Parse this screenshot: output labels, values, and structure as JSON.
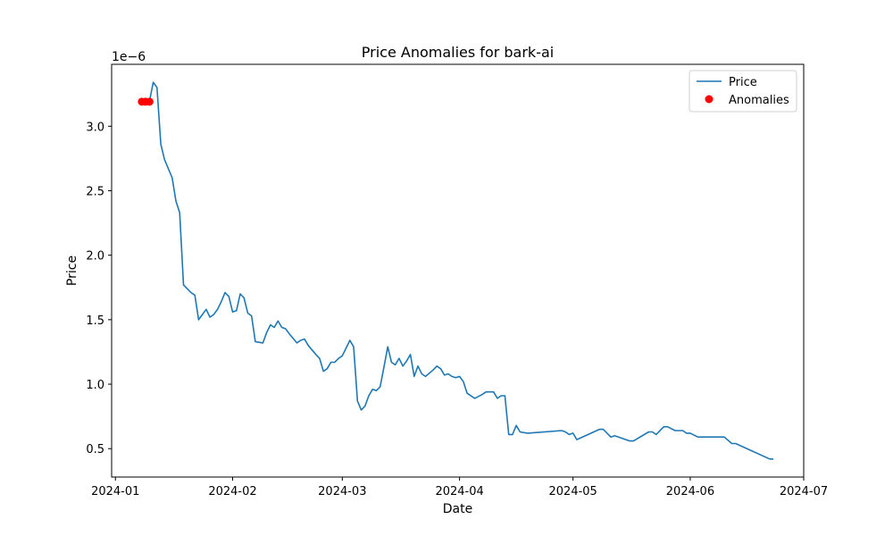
{
  "chart_data": {
    "type": "line",
    "title": "Price Anomalies for bark-ai",
    "xlabel": "Date",
    "ylabel": "Price",
    "y_scale_label": "1e−6",
    "x_range": [
      "2023-12-31",
      "2024-07-01"
    ],
    "ylim": [
      0.28,
      3.48
    ],
    "x_ticks": [
      "2024-01",
      "2024-02",
      "2024-03",
      "2024-04",
      "2024-05",
      "2024-06",
      "2024-07"
    ],
    "x_tick_dates": [
      "2024-01-01",
      "2024-02-01",
      "2024-03-01",
      "2024-04-01",
      "2024-05-01",
      "2024-06-01",
      "2024-07-01"
    ],
    "y_ticks": [
      0.5,
      1.0,
      1.5,
      2.0,
      2.5,
      3.0
    ],
    "y_tick_labels": [
      "0.5",
      "1.0",
      "1.5",
      "2.0",
      "2.5",
      "3.0"
    ],
    "legend_position": "top-right",
    "grid": false,
    "series": [
      {
        "name": "Price",
        "kind": "line",
        "color": "#1f77b4",
        "points": [
          [
            "2024-01-08",
            3.19
          ],
          [
            "2024-01-09",
            3.19
          ],
          [
            "2024-01-10",
            3.19
          ],
          [
            "2024-01-11",
            3.34
          ],
          [
            "2024-01-12",
            3.3
          ],
          [
            "2024-01-13",
            2.86
          ],
          [
            "2024-01-14",
            2.74
          ],
          [
            "2024-01-16",
            2.6
          ],
          [
            "2024-01-17",
            2.42
          ],
          [
            "2024-01-18",
            2.33
          ],
          [
            "2024-01-19",
            1.77
          ],
          [
            "2024-01-20",
            1.74
          ],
          [
            "2024-01-21",
            1.71
          ],
          [
            "2024-01-22",
            1.69
          ],
          [
            "2024-01-23",
            1.5
          ],
          [
            "2024-01-25",
            1.58
          ],
          [
            "2024-01-26",
            1.52
          ],
          [
            "2024-01-27",
            1.54
          ],
          [
            "2024-01-28",
            1.58
          ],
          [
            "2024-01-29",
            1.64
          ],
          [
            "2024-01-30",
            1.71
          ],
          [
            "2024-01-31",
            1.68
          ],
          [
            "2024-02-01",
            1.56
          ],
          [
            "2024-02-02",
            1.57
          ],
          [
            "2024-02-03",
            1.7
          ],
          [
            "2024-02-04",
            1.67
          ],
          [
            "2024-02-05",
            1.55
          ],
          [
            "2024-02-06",
            1.53
          ],
          [
            "2024-02-07",
            1.33
          ],
          [
            "2024-02-09",
            1.32
          ],
          [
            "2024-02-10",
            1.4
          ],
          [
            "2024-02-11",
            1.46
          ],
          [
            "2024-02-12",
            1.44
          ],
          [
            "2024-02-13",
            1.49
          ],
          [
            "2024-02-14",
            1.44
          ],
          [
            "2024-02-15",
            1.43
          ],
          [
            "2024-02-16",
            1.39
          ],
          [
            "2024-02-18",
            1.32
          ],
          [
            "2024-02-19",
            1.34
          ],
          [
            "2024-02-20",
            1.35
          ],
          [
            "2024-02-21",
            1.3
          ],
          [
            "2024-02-23",
            1.23
          ],
          [
            "2024-02-24",
            1.2
          ],
          [
            "2024-02-25",
            1.1
          ],
          [
            "2024-02-26",
            1.12
          ],
          [
            "2024-02-27",
            1.17
          ],
          [
            "2024-02-28",
            1.17
          ],
          [
            "2024-02-29",
            1.2
          ],
          [
            "2024-03-01",
            1.22
          ],
          [
            "2024-03-02",
            1.28
          ],
          [
            "2024-03-03",
            1.34
          ],
          [
            "2024-03-04",
            1.29
          ],
          [
            "2024-03-05",
            0.87
          ],
          [
            "2024-03-06",
            0.8
          ],
          [
            "2024-03-07",
            0.83
          ],
          [
            "2024-03-08",
            0.91
          ],
          [
            "2024-03-09",
            0.96
          ],
          [
            "2024-03-10",
            0.95
          ],
          [
            "2024-03-11",
            0.98
          ],
          [
            "2024-03-12",
            1.13
          ],
          [
            "2024-03-13",
            1.29
          ],
          [
            "2024-03-14",
            1.17
          ],
          [
            "2024-03-15",
            1.15
          ],
          [
            "2024-03-16",
            1.2
          ],
          [
            "2024-03-17",
            1.14
          ],
          [
            "2024-03-18",
            1.18
          ],
          [
            "2024-03-19",
            1.23
          ],
          [
            "2024-03-20",
            1.06
          ],
          [
            "2024-03-21",
            1.14
          ],
          [
            "2024-03-22",
            1.08
          ],
          [
            "2024-03-23",
            1.06
          ],
          [
            "2024-03-25",
            1.11
          ],
          [
            "2024-03-26",
            1.14
          ],
          [
            "2024-03-27",
            1.12
          ],
          [
            "2024-03-28",
            1.07
          ],
          [
            "2024-03-29",
            1.08
          ],
          [
            "2024-03-30",
            1.06
          ],
          [
            "2024-03-31",
            1.05
          ],
          [
            "2024-04-01",
            1.06
          ],
          [
            "2024-04-02",
            1.02
          ],
          [
            "2024-04-03",
            0.93
          ],
          [
            "2024-04-05",
            0.89
          ],
          [
            "2024-04-07",
            0.92
          ],
          [
            "2024-04-08",
            0.94
          ],
          [
            "2024-04-10",
            0.94
          ],
          [
            "2024-04-11",
            0.89
          ],
          [
            "2024-04-12",
            0.91
          ],
          [
            "2024-04-13",
            0.91
          ],
          [
            "2024-04-14",
            0.61
          ],
          [
            "2024-04-15",
            0.61
          ],
          [
            "2024-04-16",
            0.68
          ],
          [
            "2024-04-17",
            0.63
          ],
          [
            "2024-04-19",
            0.62
          ],
          [
            "2024-04-28",
            0.64
          ],
          [
            "2024-04-29",
            0.63
          ],
          [
            "2024-04-30",
            0.61
          ],
          [
            "2024-05-01",
            0.62
          ],
          [
            "2024-05-02",
            0.57
          ],
          [
            "2024-05-08",
            0.65
          ],
          [
            "2024-05-09",
            0.65
          ],
          [
            "2024-05-11",
            0.59
          ],
          [
            "2024-05-12",
            0.6
          ],
          [
            "2024-05-16",
            0.56
          ],
          [
            "2024-05-17",
            0.56
          ],
          [
            "2024-05-21",
            0.63
          ],
          [
            "2024-05-22",
            0.63
          ],
          [
            "2024-05-23",
            0.61
          ],
          [
            "2024-05-25",
            0.67
          ],
          [
            "2024-05-26",
            0.67
          ],
          [
            "2024-05-28",
            0.64
          ],
          [
            "2024-05-30",
            0.64
          ],
          [
            "2024-05-31",
            0.62
          ],
          [
            "2024-06-01",
            0.62
          ],
          [
            "2024-06-03",
            0.59
          ],
          [
            "2024-06-09",
            0.59
          ],
          [
            "2024-06-10",
            0.59
          ],
          [
            "2024-06-12",
            0.54
          ],
          [
            "2024-06-13",
            0.54
          ],
          [
            "2024-06-22",
            0.42
          ],
          [
            "2024-06-23",
            0.42
          ]
        ]
      },
      {
        "name": "Anomalies",
        "kind": "scatter",
        "color": "#ff0000",
        "points": [
          [
            "2024-01-08",
            3.19
          ],
          [
            "2024-01-09",
            3.19
          ],
          [
            "2024-01-10",
            3.19
          ]
        ]
      }
    ]
  }
}
